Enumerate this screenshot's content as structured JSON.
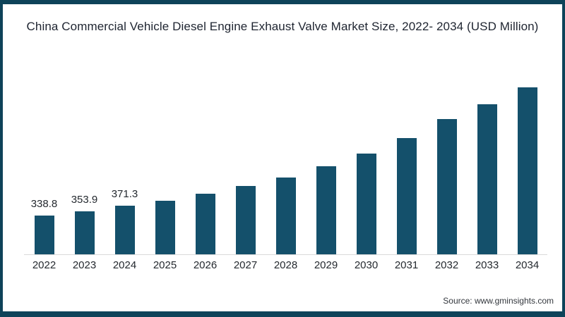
{
  "frame": {
    "border_color": "#0E4359",
    "background": "#FFFFFF"
  },
  "colors": {
    "bar": "#14506B",
    "axis_line": "#D9D9D9",
    "title_text": "#1E2430",
    "label_text": "#24292F",
    "source_text": "#33373D"
  },
  "footer": {
    "source": "Source: www.gminsights.com"
  },
  "chart_data": {
    "type": "bar",
    "title": "China Commercial Vehicle Diesel Engine Exhaust Valve Market Size, 2022- 2034 (USD Million)",
    "categories": [
      "2022",
      "2023",
      "2024",
      "2025",
      "2026",
      "2027",
      "2028",
      "2029",
      "2030",
      "2031",
      "2032",
      "2033",
      "2034"
    ],
    "values": [
      338.8,
      353.9,
      371.3,
      390,
      413,
      441,
      470,
      508,
      554,
      608,
      674,
      723,
      782
    ],
    "data_labels": [
      "338.8",
      "353.9",
      "371.3",
      "",
      "",
      "",
      "",
      "",
      "",
      "",
      "",
      "",
      ""
    ],
    "xlabel": "",
    "ylabel": "",
    "ylim": [
      204,
      790
    ],
    "grid": false,
    "legend": false,
    "bar_color": "#14506B"
  }
}
